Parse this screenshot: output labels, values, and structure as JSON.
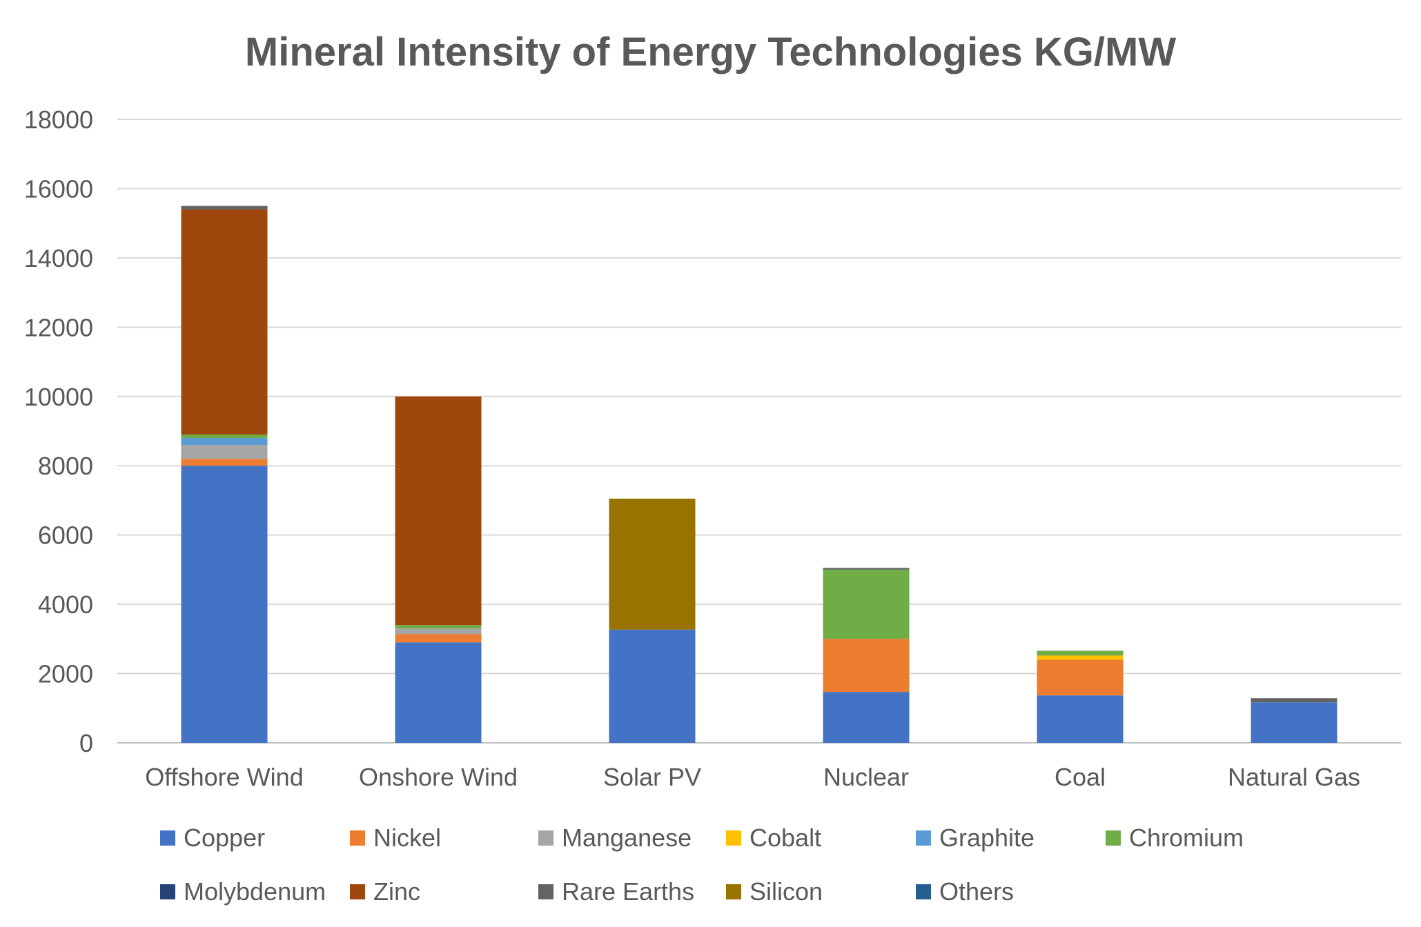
{
  "chart_data": {
    "type": "bar",
    "stacked": true,
    "title": "Mineral Intensity of Energy Technologies KG/MW",
    "xlabel": "",
    "ylabel": "",
    "ylim": [
      0,
      18000
    ],
    "yticks": [
      0,
      2000,
      4000,
      6000,
      8000,
      10000,
      12000,
      14000,
      16000,
      18000
    ],
    "grid": true,
    "legend_position": "bottom",
    "categories": [
      "Offshore Wind",
      "Onshore Wind",
      "Solar PV",
      "Nuclear",
      "Coal",
      "Natural Gas"
    ],
    "series": [
      {
        "name": "Copper",
        "color": "#4472C4",
        "values": [
          8000,
          2900,
          3270,
          1470,
          1370,
          1170
        ]
      },
      {
        "name": "Nickel",
        "color": "#ED7D31",
        "values": [
          200,
          240,
          0,
          1530,
          1030,
          0
        ]
      },
      {
        "name": "Manganese",
        "color": "#A5A5A5",
        "values": [
          400,
          160,
          0,
          0,
          0,
          0
        ]
      },
      {
        "name": "Cobalt",
        "color": "#FFC000",
        "values": [
          0,
          0,
          0,
          0,
          120,
          0
        ]
      },
      {
        "name": "Graphite",
        "color": "#5B9BD5",
        "values": [
          200,
          0,
          0,
          0,
          0,
          0
        ]
      },
      {
        "name": "Chromium",
        "color": "#70AD47",
        "values": [
          100,
          100,
          0,
          2000,
          140,
          0
        ]
      },
      {
        "name": "Molybdenum",
        "color": "#264478",
        "values": [
          0,
          0,
          0,
          0,
          0,
          0
        ]
      },
      {
        "name": "Zinc",
        "color": "#9E480E",
        "values": [
          6500,
          6600,
          0,
          0,
          0,
          0
        ]
      },
      {
        "name": "Rare Earths",
        "color": "#636363",
        "values": [
          100,
          0,
          0,
          50,
          0,
          120
        ]
      },
      {
        "name": "Silicon",
        "color": "#997300",
        "values": [
          0,
          0,
          3780,
          0,
          0,
          0
        ]
      },
      {
        "name": "Others",
        "color": "#255E91",
        "values": [
          0,
          0,
          0,
          0,
          0,
          0
        ]
      }
    ]
  }
}
